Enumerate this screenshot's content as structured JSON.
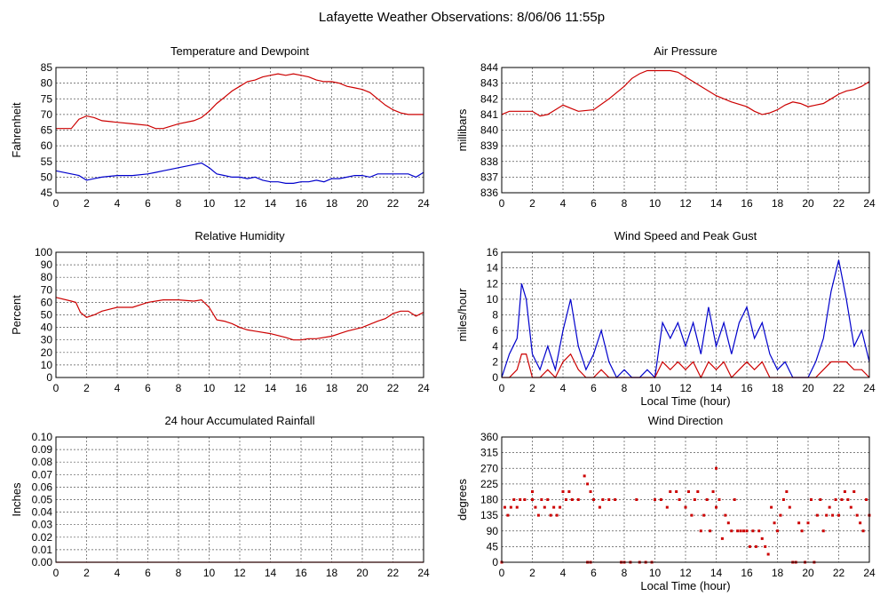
{
  "page_title": "Lafayette Weather Observations: 8/06/06 11:55p",
  "chart_data": [
    {
      "type": "line",
      "title": "Temperature and Dewpoint",
      "xlabel": "",
      "ylabel": "Fahrenheit",
      "xlim": [
        0,
        24
      ],
      "ylim": [
        45,
        85
      ],
      "xticks": [
        0,
        2,
        4,
        6,
        8,
        10,
        12,
        14,
        16,
        18,
        20,
        22,
        24
      ],
      "yticks": [
        45,
        50,
        55,
        60,
        65,
        70,
        75,
        80,
        85
      ],
      "grid": true,
      "x": [
        0,
        1,
        1.5,
        2,
        2.5,
        3,
        4,
        5,
        6,
        6.5,
        7,
        8,
        9,
        9.5,
        10,
        10.5,
        11,
        11.5,
        12,
        12.5,
        13,
        13.5,
        14,
        14.5,
        15,
        15.5,
        16,
        16.5,
        17,
        17.5,
        18,
        18.5,
        19,
        19.5,
        20,
        20.5,
        21,
        21.5,
        22,
        22.5,
        23,
        23.5,
        24
      ],
      "series": [
        {
          "color": "#cc0000",
          "values": [
            65.5,
            65.5,
            68.5,
            69.5,
            69,
            68,
            67.5,
            67,
            66.5,
            65.5,
            65.5,
            67,
            68,
            69,
            71,
            73.5,
            75.5,
            77.5,
            79,
            80.5,
            81,
            82,
            82.5,
            83,
            82.5,
            83,
            82.5,
            82,
            81,
            80.5,
            80.5,
            80,
            79,
            78.5,
            78,
            77,
            75,
            73,
            71.5,
            70.5,
            70,
            70,
            70
          ]
        },
        {
          "color": "#0000cc",
          "values": [
            52,
            51,
            50.5,
            49,
            49.5,
            50,
            50.5,
            50.5,
            51,
            51.5,
            52,
            53,
            54,
            54.5,
            53,
            51,
            50.5,
            50,
            50,
            49.5,
            50,
            49,
            48.5,
            48.5,
            48,
            48,
            48.5,
            48.5,
            49,
            48.5,
            49.5,
            49.5,
            50,
            50.5,
            50.5,
            50,
            51,
            51,
            51,
            51,
            51,
            50,
            51.5
          ]
        }
      ]
    },
    {
      "type": "line",
      "title": "Air Pressure",
      "xlabel": "",
      "ylabel": "millibars",
      "xlim": [
        0,
        24
      ],
      "ylim": [
        836,
        844
      ],
      "xticks": [
        0,
        2,
        4,
        6,
        8,
        10,
        12,
        14,
        16,
        18,
        20,
        22,
        24
      ],
      "yticks": [
        836,
        837,
        838,
        839,
        840,
        841,
        842,
        843,
        844
      ],
      "grid": true,
      "x": [
        0,
        0.5,
        1,
        2,
        2.5,
        3,
        3.5,
        4,
        4.5,
        5,
        6,
        7,
        8,
        8.5,
        9,
        9.5,
        10,
        11,
        11.5,
        12,
        12.5,
        13,
        14,
        15,
        16,
        16.5,
        17,
        17.5,
        18,
        18.5,
        19,
        19.5,
        20,
        20.5,
        21,
        21.5,
        22,
        22.5,
        23,
        23.5,
        24
      ],
      "series": [
        {
          "color": "#cc0000",
          "values": [
            841,
            841.2,
            841.2,
            841.2,
            840.9,
            841,
            841.3,
            841.6,
            841.4,
            841.2,
            841.3,
            842,
            842.8,
            843.3,
            843.6,
            843.8,
            843.8,
            843.8,
            843.7,
            843.4,
            843.1,
            842.8,
            842.2,
            841.8,
            841.5,
            841.2,
            841,
            841.1,
            841.3,
            841.6,
            841.8,
            841.7,
            841.5,
            841.6,
            841.7,
            842,
            842.3,
            842.5,
            842.6,
            842.8,
            843.1
          ]
        }
      ]
    },
    {
      "type": "line",
      "title": "Relative Humidity",
      "xlabel": "",
      "ylabel": "Percent",
      "xlim": [
        0,
        24
      ],
      "ylim": [
        0,
        100
      ],
      "xticks": [
        0,
        2,
        4,
        6,
        8,
        10,
        12,
        14,
        16,
        18,
        20,
        22,
        24
      ],
      "yticks": [
        0,
        10,
        20,
        30,
        40,
        50,
        60,
        70,
        80,
        90,
        100
      ],
      "grid": true,
      "x": [
        0,
        1,
        1.3,
        1.6,
        2,
        2.5,
        3,
        4,
        5,
        6,
        7,
        8,
        9,
        9.5,
        10,
        10.5,
        11,
        11.5,
        12,
        12.5,
        13,
        14,
        15,
        15.5,
        16,
        16.5,
        17,
        18,
        19,
        20,
        21,
        21.5,
        22,
        22.5,
        23,
        23.5,
        24
      ],
      "series": [
        {
          "color": "#cc0000",
          "values": [
            64,
            61,
            60,
            52,
            48,
            50,
            53,
            56,
            56,
            60,
            62,
            62,
            61,
            62,
            56,
            46,
            45,
            43,
            40,
            38,
            37,
            35,
            32,
            30,
            30,
            31,
            31,
            33,
            37,
            40,
            45,
            47,
            51,
            53,
            53,
            49,
            52
          ]
        }
      ]
    },
    {
      "type": "line",
      "title": "Wind Speed and Peak Gust",
      "xlabel": "Local Time (hour)",
      "ylabel": "miles/hour",
      "xlim": [
        0,
        24
      ],
      "ylim": [
        0,
        16
      ],
      "xticks": [
        0,
        2,
        4,
        6,
        8,
        10,
        12,
        14,
        16,
        18,
        20,
        22,
        24
      ],
      "yticks": [
        0,
        2,
        4,
        6,
        8,
        10,
        12,
        14,
        16
      ],
      "grid": true,
      "x": [
        0,
        0.5,
        1,
        1.3,
        1.6,
        2,
        2.5,
        3,
        3.5,
        4,
        4.5,
        5,
        5.5,
        6,
        6.5,
        7,
        7.5,
        8,
        8.5,
        9,
        9.5,
        10,
        10.5,
        11,
        11.5,
        12,
        12.5,
        13,
        13.5,
        14,
        14.5,
        15,
        15.5,
        16,
        16.5,
        17,
        17.5,
        18,
        18.5,
        19,
        19.5,
        20,
        20.5,
        21,
        21.5,
        22,
        22.5,
        23,
        23.5,
        24
      ],
      "series": [
        {
          "color": "#0000cc",
          "values": [
            0,
            3,
            5,
            12,
            10,
            3,
            1,
            4,
            1,
            6,
            10,
            4,
            1,
            3,
            6,
            2,
            0,
            1,
            0,
            0,
            1,
            0,
            7,
            5,
            7,
            4,
            7,
            3,
            9,
            4,
            7,
            3,
            7,
            9,
            5,
            7,
            3,
            1,
            2,
            0,
            0,
            0,
            2,
            5,
            11,
            15,
            10,
            4,
            6,
            2
          ]
        },
        {
          "color": "#cc0000",
          "values": [
            0,
            0,
            1,
            3,
            3,
            0,
            0,
            1,
            0,
            2,
            3,
            1,
            0,
            0,
            1,
            0,
            0,
            0,
            0,
            0,
            0,
            0,
            2,
            1,
            2,
            1,
            2,
            0,
            2,
            1,
            2,
            0,
            1,
            2,
            1,
            2,
            0,
            0,
            0,
            0,
            0,
            0,
            0,
            1,
            2,
            2,
            2,
            1,
            1,
            0
          ]
        }
      ]
    },
    {
      "type": "line",
      "title": "24 hour Accumulated Rainfall",
      "xlabel": "",
      "ylabel": "Inches",
      "xlim": [
        0,
        24
      ],
      "ylim": [
        0,
        0.1
      ],
      "xticks": [
        0,
        2,
        4,
        6,
        8,
        10,
        12,
        14,
        16,
        18,
        20,
        22,
        24
      ],
      "yticks": [
        "0.00",
        "0.01",
        "0.02",
        "0.03",
        "0.04",
        "0.05",
        "0.06",
        "0.07",
        "0.08",
        "0.09",
        "0.10"
      ],
      "grid": true,
      "x": [
        0,
        24
      ],
      "series": [
        {
          "color": "#cc0000",
          "values": [
            0,
            0
          ]
        }
      ]
    },
    {
      "type": "scatter",
      "title": "Wind Direction",
      "xlabel": "Local Time (hour)",
      "ylabel": "degrees",
      "xlim": [
        0,
        24
      ],
      "ylim": [
        0,
        360
      ],
      "xticks": [
        0,
        2,
        4,
        6,
        8,
        10,
        12,
        14,
        16,
        18,
        20,
        22,
        24
      ],
      "yticks": [
        0,
        45,
        90,
        135,
        180,
        225,
        270,
        315,
        360
      ],
      "grid": true,
      "series": [
        {
          "color": "#cc0000",
          "points": [
            [
              0,
              0
            ],
            [
              0.2,
              158
            ],
            [
              0.4,
              135
            ],
            [
              0.6,
              158
            ],
            [
              0.8,
              180
            ],
            [
              1,
              158
            ],
            [
              1.2,
              180
            ],
            [
              1.5,
              180
            ],
            [
              2,
              180
            ],
            [
              2,
              203
            ],
            [
              2.2,
              158
            ],
            [
              2.4,
              135
            ],
            [
              2.6,
              180
            ],
            [
              2.8,
              158
            ],
            [
              3,
              180
            ],
            [
              3.2,
              135
            ],
            [
              3.4,
              158
            ],
            [
              3.6,
              135
            ],
            [
              3.8,
              158
            ],
            [
              4,
              203
            ],
            [
              4.2,
              180
            ],
            [
              4.4,
              203
            ],
            [
              4.6,
              180
            ],
            [
              5,
              180
            ],
            [
              5.4,
              248
            ],
            [
              5.6,
              225
            ],
            [
              5.8,
              203
            ],
            [
              5.6,
              0
            ],
            [
              5.8,
              0
            ],
            [
              6,
              180
            ],
            [
              6.4,
              158
            ],
            [
              6.6,
              180
            ],
            [
              7,
              180
            ],
            [
              7.4,
              180
            ],
            [
              7.8,
              0
            ],
            [
              8,
              0
            ],
            [
              8.4,
              0
            ],
            [
              8.8,
              180
            ],
            [
              9,
              0
            ],
            [
              9.4,
              0
            ],
            [
              9.8,
              0
            ],
            [
              10,
              180
            ],
            [
              10.4,
              180
            ],
            [
              10.8,
              158
            ],
            [
              11,
              203
            ],
            [
              11.4,
              203
            ],
            [
              11.6,
              180
            ],
            [
              12,
              158
            ],
            [
              12.2,
              203
            ],
            [
              12.4,
              135
            ],
            [
              12.6,
              180
            ],
            [
              12.8,
              203
            ],
            [
              13,
              90
            ],
            [
              13.2,
              135
            ],
            [
              13.4,
              180
            ],
            [
              13.6,
              90
            ],
            [
              13.8,
              203
            ],
            [
              14,
              270
            ],
            [
              14,
              158
            ],
            [
              14.2,
              180
            ],
            [
              14.4,
              68
            ],
            [
              14.6,
              135
            ],
            [
              14.8,
              113
            ],
            [
              15,
              90
            ],
            [
              15.2,
              180
            ],
            [
              15.4,
              90
            ],
            [
              15.6,
              90
            ],
            [
              15.8,
              90
            ],
            [
              16,
              90
            ],
            [
              16.2,
              45
            ],
            [
              16.4,
              90
            ],
            [
              16.6,
              45
            ],
            [
              16.8,
              90
            ],
            [
              17,
              68
            ],
            [
              17.2,
              45
            ],
            [
              17.4,
              23
            ],
            [
              17.6,
              158
            ],
            [
              17.8,
              113
            ],
            [
              18,
              90
            ],
            [
              18.2,
              135
            ],
            [
              18.4,
              180
            ],
            [
              18.6,
              203
            ],
            [
              18.8,
              158
            ],
            [
              19,
              0
            ],
            [
              19.2,
              0
            ],
            [
              19.4,
              113
            ],
            [
              19.6,
              90
            ],
            [
              19.8,
              0
            ],
            [
              20,
              113
            ],
            [
              20.2,
              180
            ],
            [
              20.4,
              0
            ],
            [
              20.6,
              135
            ],
            [
              20.8,
              180
            ],
            [
              21,
              90
            ],
            [
              21.2,
              135
            ],
            [
              21.4,
              158
            ],
            [
              21.6,
              135
            ],
            [
              21.8,
              180
            ],
            [
              22,
              135
            ],
            [
              22.2,
              180
            ],
            [
              22.4,
              203
            ],
            [
              22.6,
              180
            ],
            [
              22.8,
              158
            ],
            [
              23,
              203
            ],
            [
              23.2,
              135
            ],
            [
              23.4,
              113
            ],
            [
              23.6,
              90
            ],
            [
              23.8,
              180
            ],
            [
              24,
              135
            ]
          ]
        }
      ]
    }
  ]
}
